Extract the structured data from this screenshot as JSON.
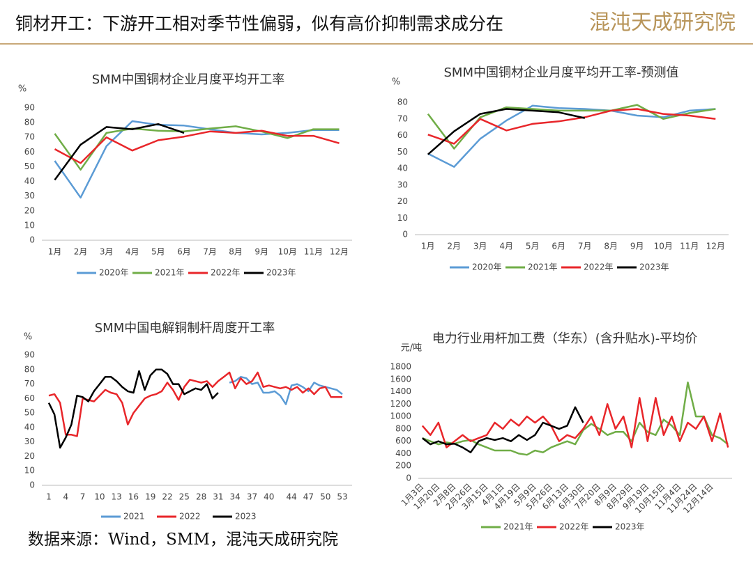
{
  "header": {
    "title": "铜材开工：下游开工相对季节性偏弱，似有高价抑制需求成分在",
    "logo": "混沌天成研究院"
  },
  "footer": {
    "source": "数据来源：Wind，SMM，混沌天成研究院"
  },
  "chart_data": [
    {
      "type": "line",
      "title": "SMM中国铜材企业月度平均开工率",
      "y_label": "%",
      "grid": false,
      "categories": [
        "1月",
        "2月",
        "3月",
        "4月",
        "5月",
        "6月",
        "7月",
        "8月",
        "9月",
        "10月",
        "11月",
        "12月"
      ],
      "ylim": [
        0,
        90
      ],
      "yticks": [
        0,
        10,
        20,
        30,
        40,
        50,
        60,
        70,
        80,
        90
      ],
      "series": [
        {
          "name": "2020年",
          "color": "#5b9bd5",
          "values": [
            54,
            29,
            64,
            81,
            78.5,
            78,
            75.5,
            73,
            72,
            73,
            75,
            75
          ]
        },
        {
          "name": "2021年",
          "color": "#70ad47",
          "values": [
            72.5,
            48,
            73,
            76,
            74.5,
            74,
            76,
            77.5,
            74,
            69.5,
            75.5,
            75.5
          ]
        },
        {
          "name": "2022年",
          "color": "#e8262a",
          "values": [
            62,
            52.5,
            70,
            61,
            68,
            70.5,
            74,
            73,
            74.5,
            71,
            71,
            66
          ]
        },
        {
          "name": "2023年",
          "color": "#000000",
          "values": [
            41,
            65,
            77,
            75.5,
            79,
            73,
            null,
            null,
            null,
            null,
            null,
            null
          ]
        }
      ]
    },
    {
      "type": "line",
      "title": "SMM中国铜材企业月度平均开工率-预测值",
      "y_label": "%",
      "grid": false,
      "categories": [
        "1月",
        "2月",
        "3月",
        "4月",
        "5月",
        "6月",
        "7月",
        "8月",
        "9月",
        "10月",
        "11月",
        "12月"
      ],
      "ylim": [
        0,
        80
      ],
      "yticks": [
        0,
        10,
        20,
        30,
        40,
        50,
        60,
        70,
        80
      ],
      "series": [
        {
          "name": "2020年",
          "color": "#5b9bd5",
          "values": [
            49,
            41,
            58,
            69,
            78,
            76.5,
            76,
            75,
            72,
            71,
            75,
            76
          ]
        },
        {
          "name": "2021年",
          "color": "#70ad47",
          "values": [
            73,
            52,
            71,
            77,
            76,
            75,
            75,
            75,
            78.5,
            70,
            73.5,
            76
          ]
        },
        {
          "name": "2022年",
          "color": "#e8262a",
          "values": [
            60.5,
            55,
            70,
            63,
            67,
            68.5,
            71,
            75,
            76,
            73,
            72,
            70
          ]
        },
        {
          "name": "2023年",
          "color": "#000000",
          "values": [
            48.5,
            62.5,
            73,
            76,
            75,
            74,
            70.5,
            null,
            null,
            null,
            null,
            null
          ]
        }
      ]
    },
    {
      "type": "line",
      "title": "SMM中国电解铜制杆周度开工率",
      "y_label": "%",
      "grid": false,
      "x": [
        1,
        2,
        3,
        4,
        5,
        6,
        7,
        8,
        9,
        10,
        11,
        12,
        13,
        14,
        15,
        16,
        17,
        18,
        19,
        20,
        21,
        22,
        23,
        24,
        25,
        26,
        27,
        28,
        29,
        30,
        31,
        32,
        33,
        34,
        35,
        36,
        37,
        38,
        39,
        40,
        41,
        42,
        43,
        44,
        45,
        46,
        47,
        48,
        49,
        50,
        51,
        52,
        53
      ],
      "xlim": [
        1,
        53
      ],
      "xticks": [
        1,
        4,
        7,
        10,
        13,
        16,
        19,
        22,
        25,
        28,
        31,
        34,
        37,
        40,
        44,
        47,
        50,
        53
      ],
      "ylim": [
        0,
        90
      ],
      "yticks": [
        0,
        10,
        20,
        30,
        40,
        50,
        60,
        70,
        80,
        90
      ],
      "series": [
        {
          "name": "2021",
          "color": "#5b9bd5",
          "values": [
            null,
            null,
            null,
            null,
            null,
            null,
            null,
            null,
            null,
            null,
            null,
            null,
            null,
            null,
            null,
            null,
            null,
            null,
            null,
            null,
            null,
            null,
            null,
            null,
            null,
            null,
            null,
            null,
            null,
            null,
            null,
            null,
            71,
            72,
            75,
            74,
            70,
            71,
            64,
            64,
            65,
            62,
            56,
            69,
            70,
            68,
            65,
            71,
            69,
            68,
            67,
            66,
            63
          ]
        },
        {
          "name": "2022",
          "color": "#e8262a",
          "values": [
            62,
            63,
            57,
            35,
            35,
            34,
            60,
            59,
            58,
            62,
            66,
            64,
            63,
            57,
            42,
            50,
            55,
            60,
            62,
            63,
            65,
            71,
            66,
            59,
            68,
            73,
            72,
            71,
            72,
            68,
            72,
            75,
            78,
            67,
            74,
            70,
            72,
            78,
            68,
            69,
            68,
            67,
            68,
            66,
            68,
            64,
            67,
            63,
            67,
            68,
            61,
            61,
            61
          ]
        },
        {
          "name": "2023",
          "color": "#000000",
          "values": [
            57,
            49,
            26,
            33,
            42,
            62,
            61,
            58,
            65,
            70,
            75,
            75,
            72,
            68,
            65,
            64,
            79,
            66,
            76,
            80,
            80,
            77,
            70,
            70,
            63,
            65,
            67,
            66,
            70,
            60,
            64,
            null,
            null,
            null,
            null,
            null,
            null,
            null,
            null,
            null,
            null,
            null,
            null,
            null,
            null,
            null,
            null,
            null,
            null,
            null,
            null,
            null,
            null
          ]
        }
      ]
    },
    {
      "type": "line",
      "title": "电力行业用杆加工费（华东）(含升贴水)-平均价",
      "y_label": "元/吨",
      "grid": false,
      "categories": [
        "1月3日",
        null,
        "1月20日",
        null,
        "2月8日",
        null,
        "2月26日",
        null,
        "3月15日",
        null,
        "4月1日",
        null,
        "4月19日",
        null,
        "5月9日",
        null,
        "5月26日",
        null,
        "6月13日",
        null,
        "6月30日",
        null,
        "7月20日",
        null,
        "8月9日",
        null,
        "8月29日",
        null,
        "9月19日",
        null,
        "10月15日",
        null,
        "11月4日",
        null,
        "11月24日",
        null,
        "12月14日",
        null,
        null
      ],
      "ylim": [
        0,
        1800
      ],
      "yticks": [
        0,
        200,
        400,
        600,
        800,
        1000,
        1200,
        1400,
        1600,
        1800
      ],
      "series": [
        {
          "name": "2021年",
          "color": "#70ad47",
          "values": [
            650,
            600,
            550,
            580,
            560,
            600,
            620,
            550,
            500,
            450,
            450,
            450,
            400,
            380,
            450,
            420,
            500,
            550,
            600,
            550,
            780,
            880,
            800,
            700,
            750,
            750,
            600,
            900,
            750,
            700,
            950,
            850,
            700,
            1550,
            1000,
            1000,
            700,
            650,
            550
          ]
        },
        {
          "name": "2022年",
          "color": "#e8262a",
          "values": [
            850,
            700,
            900,
            500,
            600,
            700,
            600,
            650,
            700,
            900,
            800,
            950,
            850,
            1000,
            900,
            1000,
            850,
            600,
            700,
            650,
            800,
            1000,
            700,
            1200,
            800,
            1000,
            500,
            1300,
            600,
            1300,
            700,
            1000,
            600,
            900,
            800,
            1000,
            600,
            1050,
            500
          ]
        },
        {
          "name": "2023年",
          "color": "#000000",
          "values": [
            650,
            550,
            600,
            550,
            560,
            500,
            420,
            600,
            650,
            620,
            650,
            600,
            700,
            620,
            700,
            900,
            850,
            800,
            850,
            1150,
            900,
            null,
            null,
            null,
            null,
            null,
            null,
            null,
            null,
            null,
            null,
            null,
            null,
            null,
            null,
            null,
            null,
            null,
            null
          ]
        }
      ]
    }
  ]
}
